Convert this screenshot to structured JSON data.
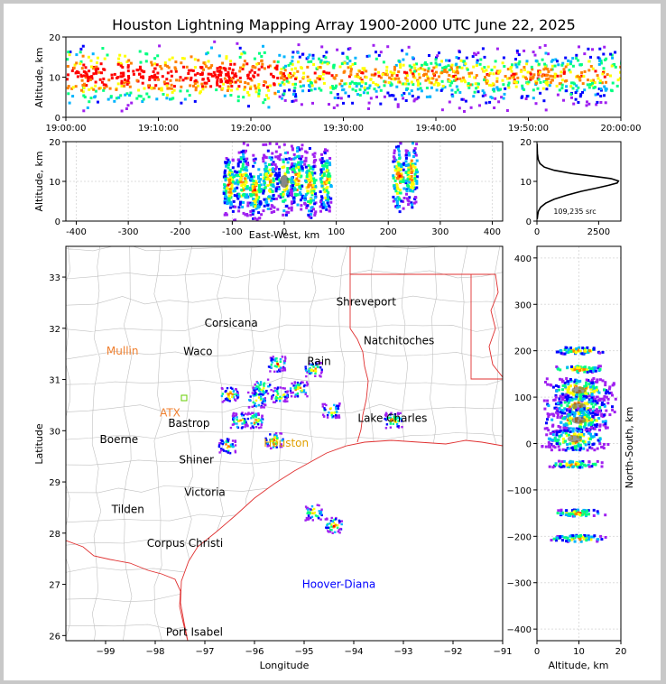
{
  "chart_data": [
    {
      "type": "heatmap",
      "id": "altitude-time",
      "title": "Houston Lightning Mapping Array 1900-2000 UTC June 22, 2025",
      "ylabel": "Altitude, km",
      "xlabel": "",
      "xlim": [
        "19:00:00",
        "20:00:00"
      ],
      "ylim": [
        0,
        20
      ],
      "xticks": [
        "19:00:00",
        "19:10:00",
        "19:20:00",
        "19:30:00",
        "19:40:00",
        "19:50:00",
        "20:00:00"
      ],
      "yticks": [
        0,
        10,
        20
      ],
      "grid": false,
      "colormap": [
        "#a020f0",
        "#0000ff",
        "#00b4ff",
        "#00ff80",
        "#ffff00",
        "#ff8000",
        "#ff0000"
      ]
    },
    {
      "type": "heatmap",
      "id": "altitude-eastwest",
      "xlabel": "East-West, km",
      "ylabel": "Altitude, km",
      "xlim": [
        -420,
        420
      ],
      "ylim": [
        0,
        20
      ],
      "xticks": [
        -400,
        -300,
        -200,
        -100,
        0,
        100,
        200,
        300,
        400
      ],
      "yticks": [
        0,
        10,
        20
      ],
      "grid": true,
      "clusters": [
        {
          "x": -105,
          "y": 9
        },
        {
          "x": -80,
          "y": 10
        },
        {
          "x": -55,
          "y": 8
        },
        {
          "x": -30,
          "y": 10
        },
        {
          "x": 0,
          "y": 10
        },
        {
          "x": 25,
          "y": 11
        },
        {
          "x": 50,
          "y": 9
        },
        {
          "x": 80,
          "y": 10
        },
        {
          "x": 220,
          "y": 11
        },
        {
          "x": 245,
          "y": 12
        }
      ]
    },
    {
      "type": "line",
      "id": "altitude-histogram",
      "xlim": [
        0,
        3400
      ],
      "ylim": [
        0,
        20
      ],
      "xticks": [
        0,
        2500
      ],
      "yticks": [
        0,
        10,
        20
      ],
      "annotation": "109,235 src",
      "series": [
        {
          "x": [
            10,
            30,
            60,
            150,
            350,
            700,
            1200,
            1800,
            2400,
            2900,
            3250,
            3300,
            3000,
            2300,
            1400,
            700,
            300,
            120,
            50,
            20,
            5
          ],
          "y": [
            0.5,
            1.5,
            2.5,
            3.5,
            4.5,
            5.5,
            6.5,
            7.5,
            8.3,
            9.0,
            9.6,
            10.1,
            10.7,
            11.3,
            12.0,
            12.8,
            13.6,
            14.5,
            15.5,
            17.0,
            19.5
          ]
        }
      ]
    },
    {
      "type": "heatmap",
      "id": "plan-view",
      "xlabel": "Longitude",
      "ylabel": "Latitude",
      "xlim": [
        -99.8,
        -91.0
      ],
      "ylim": [
        25.9,
        33.6
      ],
      "xticks": [
        -99,
        -98,
        -97,
        -96,
        -95,
        -94,
        -93,
        -92,
        -91
      ],
      "yticks": [
        26,
        27,
        28,
        29,
        30,
        31,
        32,
        33
      ],
      "cities": [
        {
          "name": "Shreveport",
          "lon": -93.75,
          "lat": 32.52,
          "color": "#000000"
        },
        {
          "name": "Corsicana",
          "lon": -96.47,
          "lat": 32.1,
          "color": "#000000"
        },
        {
          "name": "Natchitoches",
          "lon": -93.09,
          "lat": 31.76,
          "color": "#000000"
        },
        {
          "name": "Mullin",
          "lon": -98.66,
          "lat": 31.56,
          "color": "#f08030"
        },
        {
          "name": "Waco",
          "lon": -97.14,
          "lat": 31.55,
          "color": "#000000"
        },
        {
          "name": "Rain",
          "lon": -94.7,
          "lat": 31.35,
          "color": "#000000"
        },
        {
          "name": "Lake Charles",
          "lon": -93.22,
          "lat": 30.24,
          "color": "#000000"
        },
        {
          "name": "ATX",
          "lon": -97.7,
          "lat": 30.35,
          "color": "#f08030"
        },
        {
          "name": "Bastrop",
          "lon": -97.32,
          "lat": 30.15,
          "color": "#000000"
        },
        {
          "name": "Boerne",
          "lon": -98.73,
          "lat": 29.83,
          "color": "#000000"
        },
        {
          "name": "Houston",
          "lon": -95.36,
          "lat": 29.76,
          "color": "#e0a000"
        },
        {
          "name": "Shiner",
          "lon": -97.17,
          "lat": 29.43,
          "color": "#000000"
        },
        {
          "name": "Victoria",
          "lon": -97.0,
          "lat": 28.8,
          "color": "#000000"
        },
        {
          "name": "Tilden",
          "lon": -98.55,
          "lat": 28.46,
          "color": "#000000"
        },
        {
          "name": "Corpus Christi",
          "lon": -97.4,
          "lat": 27.8,
          "color": "#000000"
        },
        {
          "name": "Hoover-Diana",
          "lon": -94.3,
          "lat": 27.0,
          "color": "#0000ff"
        },
        {
          "name": "Port Isabel",
          "lon": -97.21,
          "lat": 26.07,
          "color": "#000000"
        }
      ],
      "clusters": [
        {
          "lon": -95.85,
          "lat": 30.85
        },
        {
          "lon": -95.95,
          "lat": 30.6
        },
        {
          "lon": -96.0,
          "lat": 30.2
        },
        {
          "lon": -95.5,
          "lat": 30.7
        },
        {
          "lon": -95.1,
          "lat": 30.8
        },
        {
          "lon": -94.8,
          "lat": 31.2
        },
        {
          "lon": -95.55,
          "lat": 31.3
        },
        {
          "lon": -94.45,
          "lat": 30.4
        },
        {
          "lon": -93.2,
          "lat": 30.2
        },
        {
          "lon": -94.8,
          "lat": 28.4
        },
        {
          "lon": -94.4,
          "lat": 28.15
        },
        {
          "lon": -96.5,
          "lat": 30.7
        },
        {
          "lon": -96.3,
          "lat": 30.2
        },
        {
          "lon": -96.55,
          "lat": 29.7
        },
        {
          "lon": -95.6,
          "lat": 29.8
        }
      ]
    },
    {
      "type": "heatmap",
      "id": "northsouth-altitude",
      "xlabel": "Altitude, km",
      "ylabel": "North-South, km",
      "xlim": [
        0,
        20
      ],
      "ylim": [
        -425,
        425
      ],
      "xticks": [
        0,
        10,
        20
      ],
      "yticks": [
        -400,
        -300,
        -200,
        -100,
        0,
        100,
        200,
        300,
        400
      ],
      "grid": true,
      "clusters": [
        {
          "x": 10,
          "y": 115
        },
        {
          "x": 10,
          "y": 80
        },
        {
          "x": 10,
          "y": 50
        },
        {
          "x": 9,
          "y": 10
        },
        {
          "x": 10,
          "y": 160
        },
        {
          "x": 10,
          "y": 200
        },
        {
          "x": 10,
          "y": -150
        },
        {
          "x": 10,
          "y": -205
        },
        {
          "x": 9,
          "y": -45
        }
      ]
    }
  ]
}
